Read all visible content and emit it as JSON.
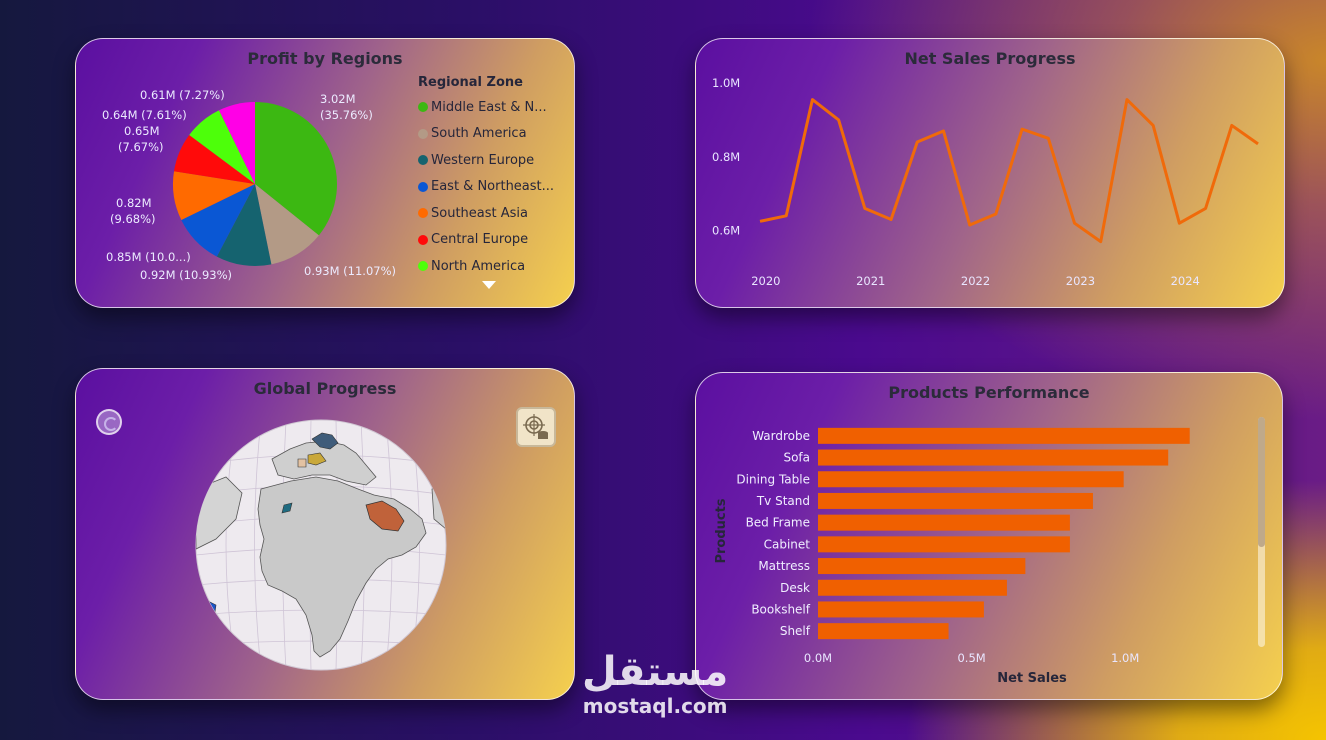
{
  "pie_card": {
    "title": "Profit by Regions",
    "legend_title": "Regional Zone",
    "legend": [
      {
        "label": "Middle East & N...",
        "color": "#3cb812"
      },
      {
        "label": "South America",
        "color": "#b39a86"
      },
      {
        "label": "Western Europe",
        "color": "#15636f"
      },
      {
        "label": "East & Northeast...",
        "color": "#0a57d4"
      },
      {
        "label": "Southeast Asia",
        "color": "#ff6a00"
      },
      {
        "label": "Central Europe",
        "color": "#ff0a0a"
      },
      {
        "label": "North America",
        "color": "#4dff0a"
      }
    ],
    "labels": {
      "l1": "0.61M (7.27%)",
      "l2": "0.64M (7.61%)",
      "l3a": "0.65M",
      "l3b": "(7.67%)",
      "l4a": "0.82M",
      "l4b": "(9.68%)",
      "l5": "0.85M (10.0...)",
      "l6": "0.92M (10.93%)",
      "l7": "0.93M (11.07%)",
      "l8a": "3.02M",
      "l8b": "(35.76%)"
    }
  },
  "line_card": {
    "title": "Net Sales Progress"
  },
  "globe_card": {
    "title": "Global Progress"
  },
  "bar_card": {
    "title": "Products Performance",
    "ylabel": "Products",
    "xlabel": "Net Sales"
  },
  "watermark": {
    "arabic": "مستقل",
    "latin": "mostaql.com"
  },
  "chart_data": [
    {
      "type": "pie",
      "title": "Profit by Regions",
      "legend_title": "Regional Zone",
      "slices": [
        {
          "name": "Middle East & N...",
          "value": 3.02,
          "percent": 35.76,
          "color": "#3cb812"
        },
        {
          "name": "South America",
          "value": 0.93,
          "percent": 11.07,
          "color": "#b39a86"
        },
        {
          "name": "Western Europe",
          "value": 0.92,
          "percent": 10.93,
          "color": "#15636f"
        },
        {
          "name": "East & Northeast...",
          "value": 0.85,
          "percent": 10.0,
          "color": "#0a57d4"
        },
        {
          "name": "Southeast Asia",
          "value": 0.82,
          "percent": 9.68,
          "color": "#ff6a00"
        },
        {
          "name": "Central Europe",
          "value": 0.65,
          "percent": 7.67,
          "color": "#ff0a0a"
        },
        {
          "name": "North America",
          "value": 0.64,
          "percent": 7.61,
          "color": "#4dff0a"
        },
        {
          "name": "",
          "value": 0.61,
          "percent": 7.27,
          "color": "#ff00e6"
        }
      ],
      "legend_position": "right"
    },
    {
      "type": "line",
      "title": "Net Sales Progress",
      "x": [
        2019.95,
        2020.2,
        2020.45,
        2020.7,
        2020.95,
        2021.2,
        2021.45,
        2021.7,
        2021.95,
        2022.2,
        2022.45,
        2022.7,
        2022.95,
        2023.2,
        2023.45,
        2023.7,
        2023.95,
        2024.2,
        2024.45,
        2024.7
      ],
      "values": [
        0.625,
        0.64,
        0.955,
        0.9,
        0.66,
        0.63,
        0.84,
        0.87,
        0.615,
        0.645,
        0.875,
        0.85,
        0.62,
        0.57,
        0.955,
        0.885,
        0.62,
        0.66,
        0.885,
        0.835
      ],
      "xticks": [
        "2020",
        "2021",
        "2022",
        "2023",
        "2024"
      ],
      "yticks": [
        "0.6M",
        "0.8M",
        "1.0M"
      ],
      "ylim": [
        0.55,
        1.0
      ],
      "color": "#f06a0a"
    },
    {
      "type": "bar",
      "orientation": "horizontal",
      "title": "Products Performance",
      "categories": [
        "Wardrobe",
        "Sofa",
        "Dining Table",
        "Tv Stand",
        "Bed Frame",
        "Cabinet",
        "Mattress",
        "Desk",
        "Bookshelf",
        "Shelf"
      ],
      "values": [
        1.21,
        1.14,
        0.995,
        0.895,
        0.82,
        0.82,
        0.675,
        0.615,
        0.54,
        0.425
      ],
      "xticks": [
        "0.0M",
        "0.5M",
        "1.0M"
      ],
      "xlim": [
        0,
        1.25
      ],
      "xlabel": "Net Sales",
      "ylabel": "Products",
      "color": "#f06000"
    }
  ]
}
